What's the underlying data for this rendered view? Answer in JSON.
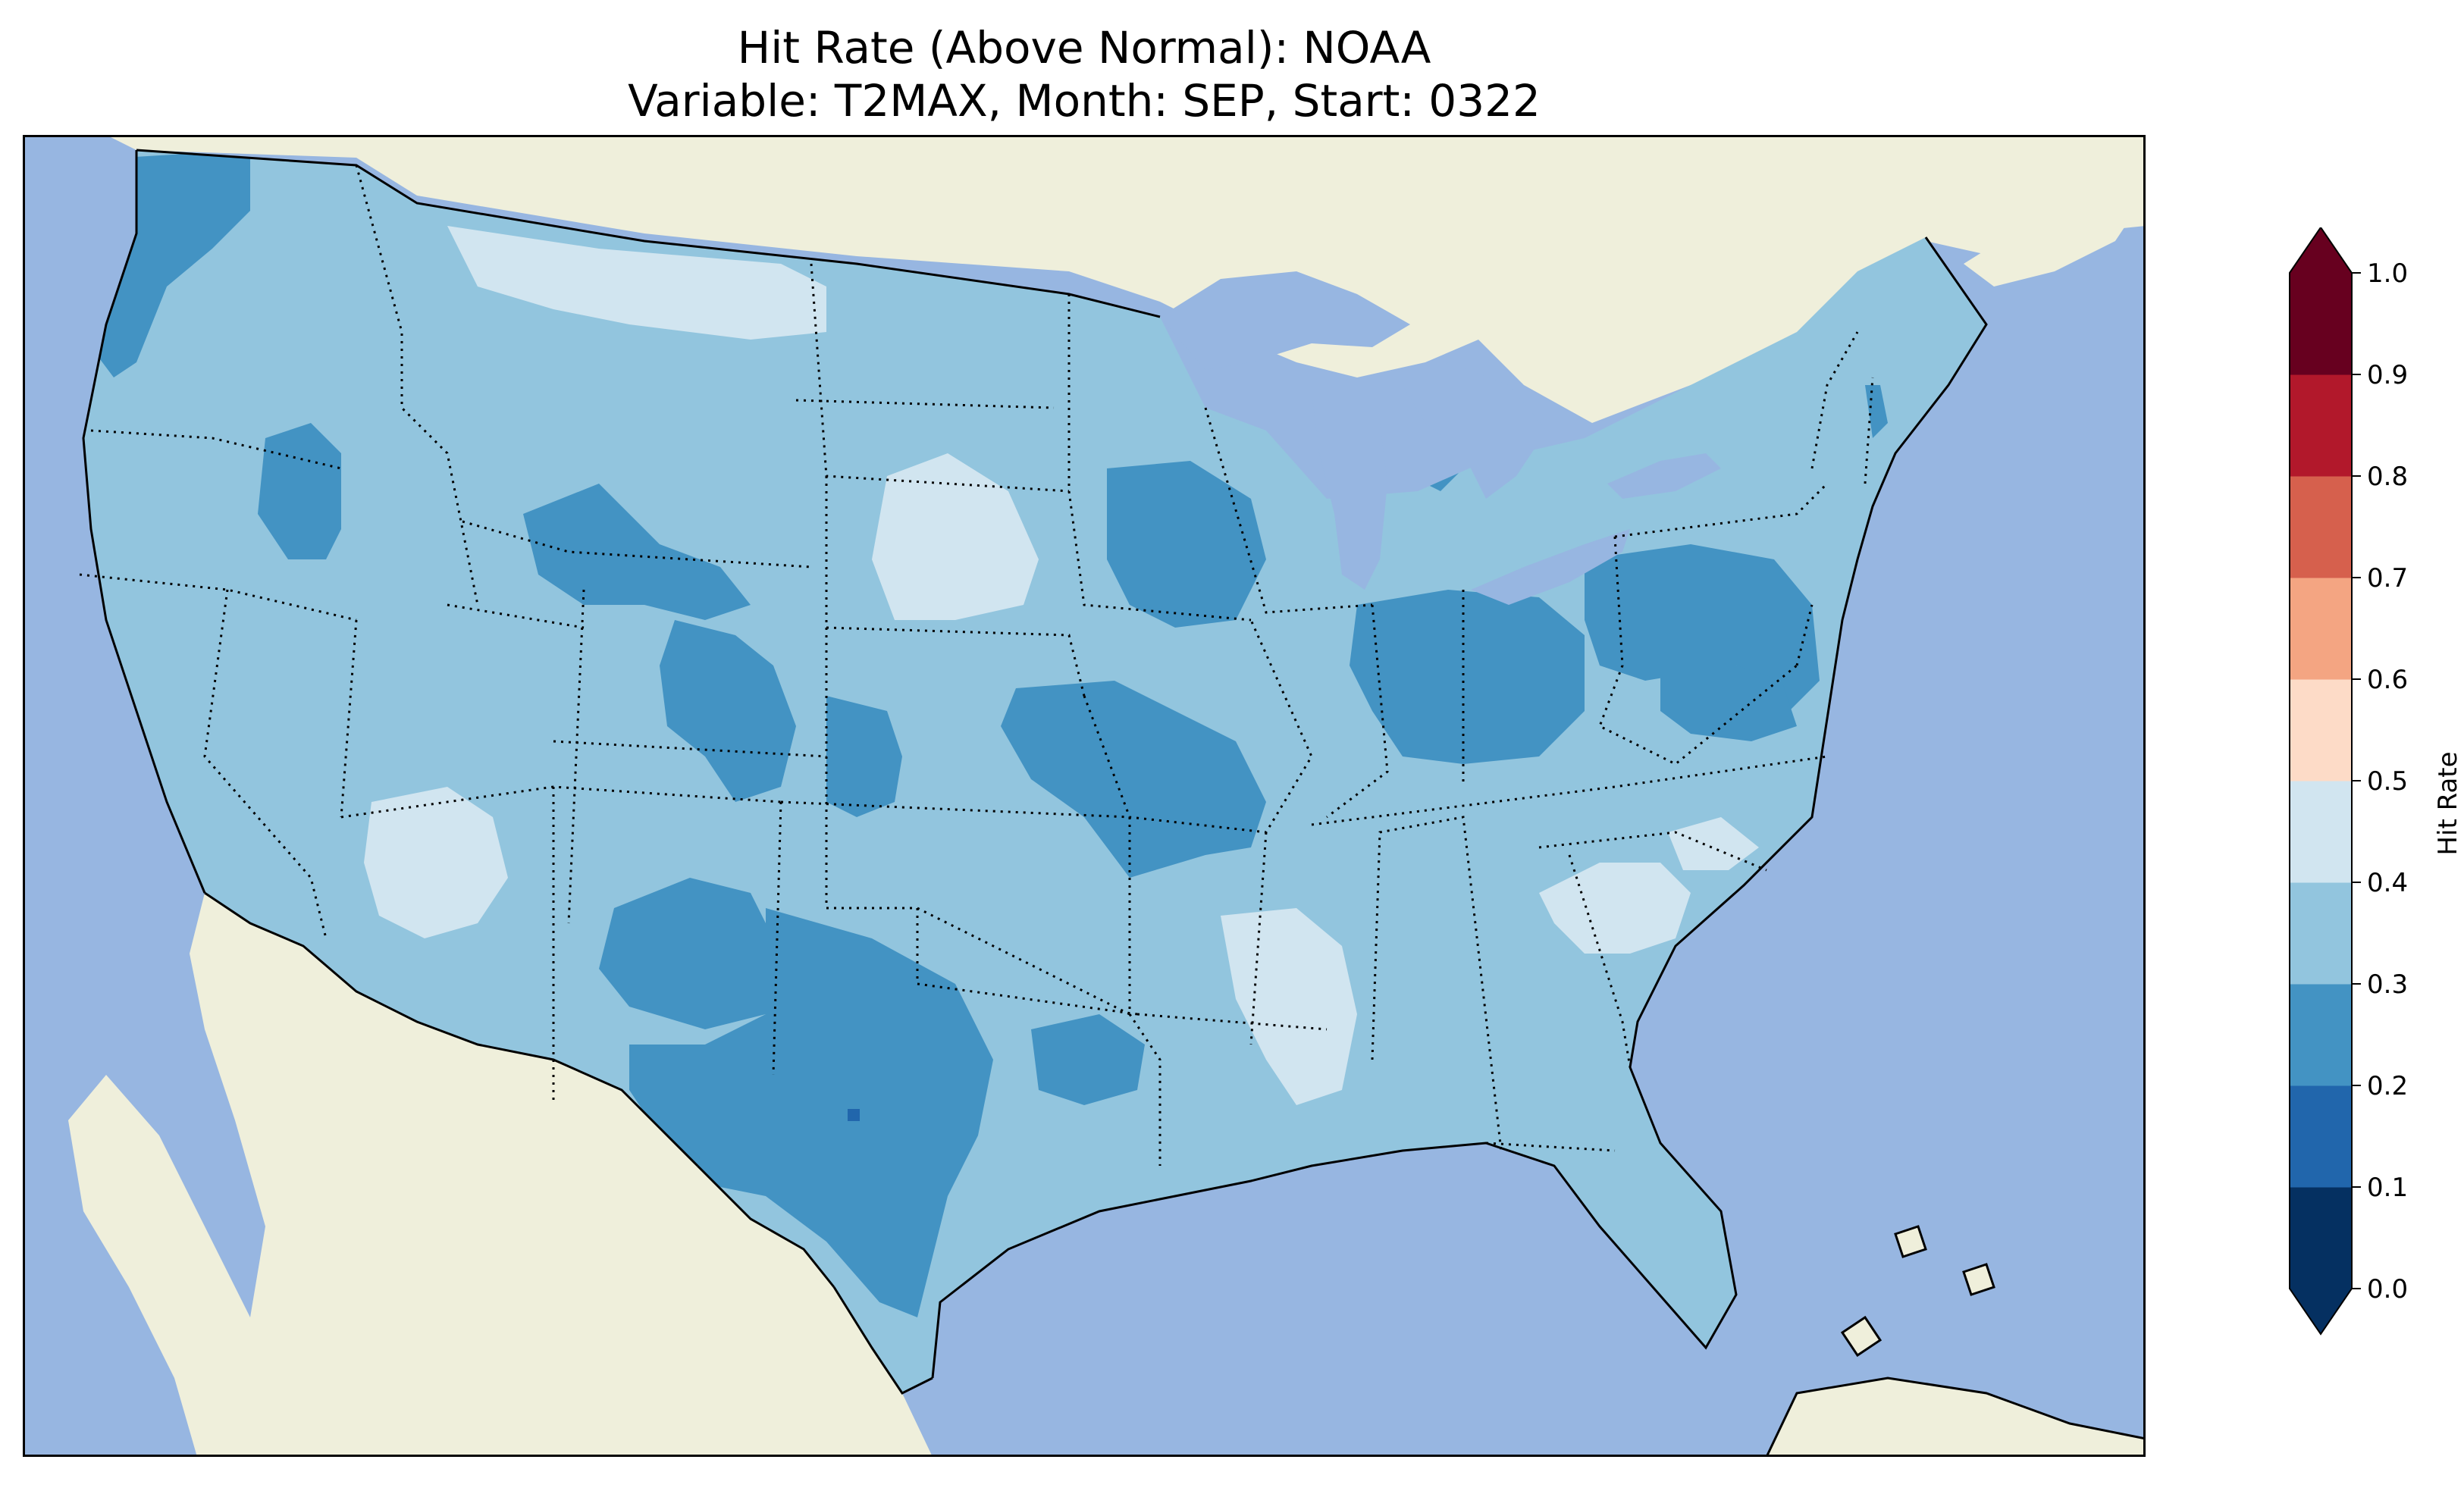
{
  "title": {
    "line1": "Hit Rate (Above Normal): NOAA",
    "line2": "Variable: T2MAX, Month: SEP, Start: 0322"
  },
  "map": {
    "colors": {
      "ocean": "#97b6e1",
      "land": "#efefdb",
      "lake": "#97b6e1",
      "coast": "#000000"
    },
    "regions": [
      {
        "name": "conus-base",
        "value": 0.35
      },
      {
        "name": "pacific-northwest-coast",
        "value": 0.25
      },
      {
        "name": "northern-rockies",
        "value": 0.45
      },
      {
        "name": "idaho-west",
        "value": 0.25
      },
      {
        "name": "wyoming",
        "value": 0.25
      },
      {
        "name": "colorado-west",
        "value": 0.25
      },
      {
        "name": "kansas-west",
        "value": 0.25
      },
      {
        "name": "south-dakota-nebraska",
        "value": 0.45
      },
      {
        "name": "arizona-west",
        "value": 0.45
      },
      {
        "name": "new-mexico-south",
        "value": 0.25
      },
      {
        "name": "texas",
        "value": 0.25
      },
      {
        "name": "missouri-kansas",
        "value": 0.25
      },
      {
        "name": "iowa-wisconsin",
        "value": 0.25
      },
      {
        "name": "oklahoma-east-arkansas",
        "value": 0.25
      },
      {
        "name": "mississippi",
        "value": 0.45
      },
      {
        "name": "carolinas",
        "value": 0.45
      },
      {
        "name": "indiana-ohio",
        "value": 0.25
      },
      {
        "name": "pennsylvania-nj",
        "value": 0.25
      },
      {
        "name": "virginia-md",
        "value": 0.25
      },
      {
        "name": "michigan-north",
        "value": 0.25
      },
      {
        "name": "new-hampshire",
        "value": 0.25
      },
      {
        "name": "texas-dark-spot",
        "value": 0.15
      }
    ]
  },
  "colorbar": {
    "label": "Hit Rate",
    "ticks": [
      "0.0",
      "0.1",
      "0.2",
      "0.3",
      "0.4",
      "0.5",
      "0.6",
      "0.7",
      "0.8",
      "0.9",
      "1.0"
    ],
    "colors": [
      "#053061",
      "#2166ac",
      "#4393c3",
      "#92c5de",
      "#d1e5f0",
      "#fddbc7",
      "#f4a582",
      "#d6604d",
      "#b2182b",
      "#67001f"
    ],
    "under_color": "#053061",
    "over_color": "#67001f",
    "extend": "both"
  }
}
